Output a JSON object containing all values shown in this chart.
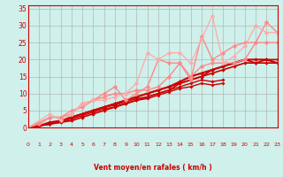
{
  "xlabel": "Vent moyen/en rafales ( km/h )",
  "xlim": [
    0,
    23
  ],
  "ylim": [
    0,
    36
  ],
  "xticks": [
    0,
    1,
    2,
    3,
    4,
    5,
    6,
    7,
    8,
    9,
    10,
    11,
    12,
    13,
    14,
    15,
    16,
    17,
    18,
    19,
    20,
    21,
    22,
    23
  ],
  "yticks": [
    0,
    5,
    10,
    15,
    20,
    25,
    30,
    35
  ],
  "bg_color": "#cff0eb",
  "grid_color": "#aaaaaa",
  "series": [
    {
      "x": [
        0,
        1,
        2,
        3,
        4,
        5,
        6,
        7,
        8,
        9,
        10,
        11,
        12,
        13,
        14,
        15,
        16,
        17,
        18,
        19,
        20,
        21,
        22,
        23
      ],
      "y": [
        0,
        0.5,
        1,
        1.5,
        2,
        3,
        4,
        5,
        6,
        7,
        8,
        9,
        10,
        11,
        13,
        14,
        15,
        17,
        18,
        19,
        20,
        19,
        20,
        20
      ],
      "color": "#cc0000",
      "lw": 1.2,
      "marker": "D",
      "ms": 2.0
    },
    {
      "x": [
        0,
        1,
        2,
        3,
        4,
        5,
        6,
        7,
        8,
        9,
        10,
        11,
        12,
        13,
        14,
        15,
        16,
        17,
        18,
        19,
        20,
        21,
        22,
        23
      ],
      "y": [
        0,
        0.5,
        1,
        2,
        3,
        4,
        5,
        6,
        7,
        8,
        9,
        10,
        11,
        12,
        13,
        14,
        15,
        16,
        17,
        18,
        19,
        19,
        19,
        19
      ],
      "color": "#cc0000",
      "lw": 1.2,
      "marker": "D",
      "ms": 2.0
    },
    {
      "x": [
        0,
        1,
        2,
        3,
        4,
        5,
        6,
        7,
        8,
        9,
        10,
        11,
        12,
        13,
        14,
        15,
        16,
        17,
        18,
        19,
        20,
        21,
        22,
        23
      ],
      "y": [
        0,
        0.5,
        1.5,
        2,
        3,
        4,
        5,
        6,
        7,
        8,
        9,
        10,
        11,
        12,
        13.5,
        15,
        16,
        17,
        18,
        19,
        20,
        20,
        20,
        19
      ],
      "color": "#cc0000",
      "lw": 1.5,
      "marker": "D",
      "ms": 2.0
    },
    {
      "x": [
        0,
        1,
        2,
        3,
        4,
        5,
        6,
        7,
        8,
        9,
        10,
        11,
        12,
        13,
        14,
        15,
        16,
        17,
        18
      ],
      "y": [
        0,
        0.5,
        1,
        2,
        3,
        4,
        5,
        6,
        6.5,
        7.5,
        8.5,
        9,
        10,
        11,
        12,
        13,
        14,
        13.5,
        14
      ],
      "color": "#cc0000",
      "lw": 1.0,
      "marker": "D",
      "ms": 1.8
    },
    {
      "x": [
        0,
        1,
        2,
        3,
        4,
        5,
        6,
        7,
        8,
        9,
        10,
        11,
        12,
        13,
        14,
        15,
        16,
        17,
        18
      ],
      "y": [
        0,
        0.5,
        1,
        1.5,
        2.5,
        3.5,
        4.5,
        5.5,
        6,
        7,
        8,
        8.5,
        9.5,
        10.5,
        11.5,
        12,
        13,
        12.5,
        13
      ],
      "color": "#cc0000",
      "lw": 1.0,
      "marker": "D",
      "ms": 1.8
    },
    {
      "x": [
        0,
        2,
        3,
        4,
        5,
        6,
        7,
        8,
        9,
        10,
        11,
        12,
        13,
        14,
        15,
        16,
        17,
        18,
        19,
        20,
        21,
        22,
        23
      ],
      "y": [
        0,
        3,
        3,
        4,
        7,
        8,
        9,
        10,
        10,
        11,
        11,
        12,
        15,
        19,
        15,
        18,
        19,
        19,
        19,
        20,
        25,
        31,
        28
      ],
      "color": "#ff8888",
      "lw": 1.0,
      "marker": "D",
      "ms": 2.5
    },
    {
      "x": [
        0,
        1,
        2,
        3,
        4,
        5,
        6,
        7,
        8,
        9,
        10,
        11,
        12,
        13,
        14,
        15,
        16,
        17,
        18,
        19,
        20,
        21,
        22,
        23
      ],
      "y": [
        0,
        1,
        3,
        3,
        5,
        6,
        8,
        10,
        12,
        8,
        10,
        12,
        20,
        19,
        19,
        14,
        27,
        20,
        22,
        24,
        25,
        25,
        25,
        25
      ],
      "color": "#ff8888",
      "lw": 1.0,
      "marker": "D",
      "ms": 2.5
    },
    {
      "x": [
        0,
        2,
        3,
        4,
        5,
        6,
        7,
        8,
        9,
        10,
        11,
        12,
        13,
        14,
        15,
        16,
        17,
        18,
        19,
        20,
        21,
        22,
        23
      ],
      "y": [
        0,
        4,
        2,
        4,
        7,
        8,
        8,
        9,
        10,
        13,
        22,
        20,
        22,
        22,
        19,
        26,
        33,
        19,
        21,
        24,
        30,
        28,
        28
      ],
      "color": "#ffaaaa",
      "lw": 0.9,
      "marker": "D",
      "ms": 2.5
    }
  ],
  "arrow_color": "#cc0000",
  "arrow_angles": [
    180,
    180,
    225,
    225,
    225,
    270,
    270,
    225,
    270,
    225,
    270,
    90,
    90,
    225,
    315,
    315,
    315,
    315,
    315,
    315,
    315,
    315,
    315,
    315
  ]
}
